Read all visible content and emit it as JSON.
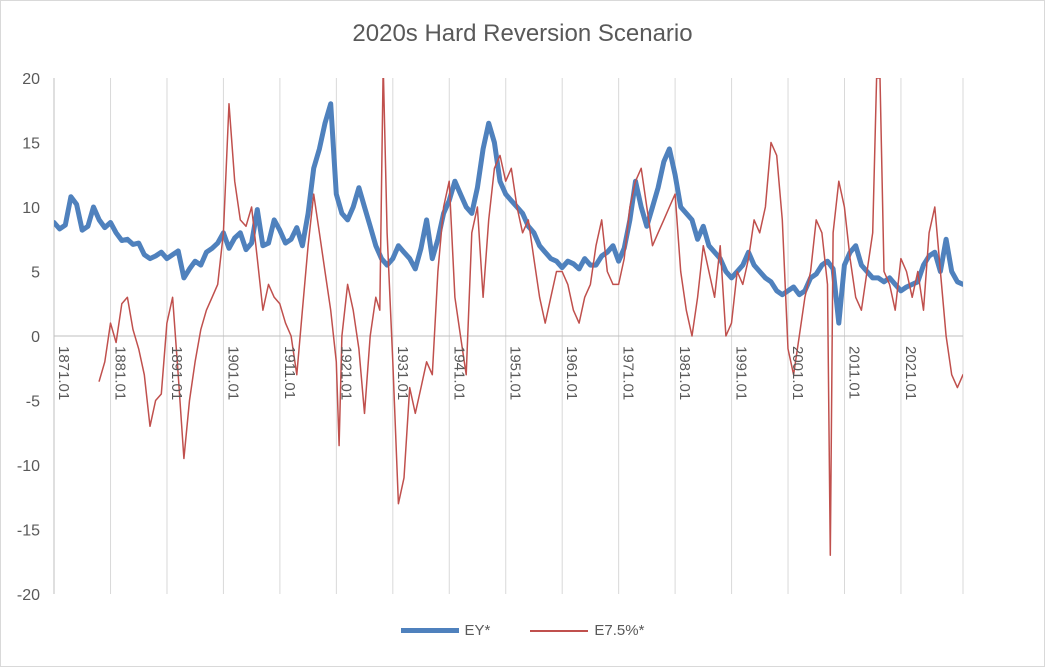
{
  "chart_data": {
    "type": "line",
    "title": "2020s Hard Reversion Scenario",
    "xlabel": "",
    "ylabel": "",
    "ylim": [
      -20,
      20
    ],
    "yticks": [
      -20,
      -15,
      -10,
      -5,
      0,
      5,
      10,
      15,
      20
    ],
    "xlim": [
      1871.0,
      2032.0
    ],
    "xticks": [
      "1871.01",
      "1881.01",
      "1891.01",
      "1901.01",
      "1911.01",
      "1921.01",
      "1931.01",
      "1941.01",
      "1951.01",
      "1961.01",
      "1971.01",
      "1981.01",
      "1991.01",
      "2001.01",
      "2011.01",
      "2021.01"
    ],
    "grid": "vertical",
    "legend_position": "bottom",
    "colors": {
      "EY": "#4f81bd",
      "E75": "#c0504d"
    },
    "series": [
      {
        "name": "EY*",
        "x": [
          1871,
          1872,
          1873,
          1874,
          1875,
          1876,
          1877,
          1878,
          1879,
          1880,
          1881,
          1882,
          1883,
          1884,
          1885,
          1886,
          1887,
          1888,
          1889,
          1890,
          1891,
          1892,
          1893,
          1894,
          1895,
          1896,
          1897,
          1898,
          1899,
          1900,
          1901,
          1902,
          1903,
          1904,
          1905,
          1906,
          1907,
          1908,
          1909,
          1910,
          1911,
          1912,
          1913,
          1914,
          1915,
          1916,
          1917,
          1918,
          1919,
          1920,
          1921,
          1922,
          1923,
          1924,
          1925,
          1926,
          1927,
          1928,
          1929,
          1930,
          1931,
          1932,
          1933,
          1934,
          1935,
          1936,
          1937,
          1938,
          1939,
          1940,
          1941,
          1942,
          1943,
          1944,
          1945,
          1946,
          1947,
          1948,
          1949,
          1950,
          1951,
          1952,
          1953,
          1954,
          1955,
          1956,
          1957,
          1958,
          1959,
          1960,
          1961,
          1962,
          1963,
          1964,
          1965,
          1966,
          1967,
          1968,
          1969,
          1970,
          1971,
          1972,
          1973,
          1974,
          1975,
          1976,
          1977,
          1978,
          1979,
          1980,
          1981,
          1982,
          1983,
          1984,
          1985,
          1986,
          1987,
          1988,
          1989,
          1990,
          1991,
          1992,
          1993,
          1994,
          1995,
          1996,
          1997,
          1998,
          1999,
          2000,
          2001,
          2002,
          2003,
          2004,
          2005,
          2006,
          2007,
          2008,
          2009,
          2010,
          2011,
          2012,
          2013,
          2014,
          2015,
          2016,
          2017,
          2018,
          2019,
          2020,
          2021,
          2022,
          2023,
          2024,
          2025,
          2026,
          2027,
          2028,
          2029,
          2030,
          2031,
          2032
        ],
        "values": [
          8.8,
          8.3,
          8.6,
          10.8,
          10.2,
          8.2,
          8.5,
          10.0,
          9.0,
          8.4,
          8.8,
          8.0,
          7.4,
          7.5,
          7.1,
          7.2,
          6.3,
          6.0,
          6.2,
          6.5,
          6.0,
          6.3,
          6.6,
          4.5,
          5.2,
          5.8,
          5.5,
          6.5,
          6.8,
          7.2,
          8.0,
          6.8,
          7.6,
          8.0,
          6.7,
          7.2,
          9.8,
          7.0,
          7.2,
          9.0,
          8.2,
          7.2,
          7.5,
          8.4,
          7.0,
          9.5,
          13.0,
          14.5,
          16.5,
          18.0,
          11.0,
          9.5,
          9.0,
          10.0,
          11.5,
          10.0,
          8.5,
          7.0,
          6.0,
          5.5,
          6.0,
          7.0,
          6.5,
          6.0,
          5.2,
          6.8,
          9.0,
          6.0,
          7.5,
          9.5,
          10.5,
          12.0,
          11.0,
          10.0,
          9.5,
          11.5,
          14.5,
          16.5,
          15.0,
          12.0,
          11.0,
          10.5,
          10.0,
          9.5,
          8.5,
          8.0,
          7.0,
          6.5,
          6.0,
          5.8,
          5.3,
          5.8,
          5.6,
          5.2,
          6.0,
          5.5,
          5.5,
          6.2,
          6.5,
          7.0,
          5.8,
          6.8,
          9.0,
          12.0,
          10.0,
          8.5,
          10.0,
          11.5,
          13.5,
          14.5,
          12.5,
          10.0,
          9.5,
          9.0,
          7.5,
          8.5,
          7.0,
          6.5,
          6.0,
          5.0,
          4.5,
          5.0,
          5.5,
          6.5,
          5.5,
          5.0,
          4.5,
          4.2,
          3.5,
          3.2,
          3.5,
          3.8,
          3.2,
          3.5,
          4.5,
          4.8,
          5.5,
          5.8,
          5.2,
          1.0,
          5.5,
          6.5,
          7.0,
          5.5,
          5.0,
          4.5,
          4.5,
          4.2,
          4.5,
          4.0,
          3.5,
          3.8,
          4.0,
          4.2,
          5.5,
          6.2,
          6.5,
          5.0,
          7.5,
          5.0,
          4.2,
          4.0
        ]
      },
      {
        "name": "E7.5%*",
        "x": [
          1879.0,
          1880.0,
          1881.0,
          1882.0,
          1883.0,
          1884.0,
          1885.0,
          1886.0,
          1887.0,
          1888.0,
          1889.0,
          1890.0,
          1891.0,
          1892.0,
          1893.0,
          1894.0,
          1895.0,
          1896.0,
          1897.0,
          1898.0,
          1899.0,
          1900.0,
          1901.0,
          1902.0,
          1903.0,
          1904.0,
          1905.0,
          1906.0,
          1907.0,
          1908.0,
          1909.0,
          1910.0,
          1911.0,
          1912.0,
          1913.0,
          1914.0,
          1915.0,
          1916.0,
          1917.0,
          1918.0,
          1919.0,
          1920.0,
          1921.0,
          1921.5,
          1922.0,
          1923.0,
          1924.0,
          1925.0,
          1926.0,
          1927.0,
          1928.0,
          1928.7,
          1929.3,
          1930.0,
          1931.0,
          1932.0,
          1933.0,
          1934.0,
          1935.0,
          1936.0,
          1937.0,
          1938.0,
          1939.0,
          1940.0,
          1941.0,
          1942.0,
          1943.0,
          1944.0,
          1945.0,
          1946.0,
          1947.0,
          1948.0,
          1949.0,
          1950.0,
          1951.0,
          1952.0,
          1953.0,
          1954.0,
          1955.0,
          1956.0,
          1957.0,
          1958.0,
          1959.0,
          1960.0,
          1961.0,
          1962.0,
          1963.0,
          1964.0,
          1965.0,
          1966.0,
          1967.0,
          1968.0,
          1969.0,
          1970.0,
          1971.0,
          1972.0,
          1973.0,
          1974.0,
          1975.0,
          1976.0,
          1977.0,
          1978.0,
          1979.0,
          1980.0,
          1981.0,
          1982.0,
          1983.0,
          1984.0,
          1985.0,
          1986.0,
          1987.0,
          1988.0,
          1989.0,
          1990.0,
          1991.0,
          1992.0,
          1993.0,
          1994.0,
          1995.0,
          1996.0,
          1997.0,
          1998.0,
          1999.0,
          2000.0,
          2001.0,
          2002.0,
          2003.0,
          2004.0,
          2005.0,
          2006.0,
          2007.0,
          2008.0,
          2008.5,
          2009.0,
          2010.0,
          2011.0,
          2012.0,
          2013.0,
          2014.0,
          2015.0,
          2016.0,
          2016.7,
          2017.3,
          2018.0,
          2019.0,
          2020.0,
          2021.0,
          2022.0,
          2023.0,
          2024.0,
          2025.0,
          2026.0,
          2027.0,
          2028.0,
          2029.0,
          2030.0,
          2031.0,
          2032.0
        ],
        "values": [
          -3.5,
          -2.0,
          1.0,
          -0.5,
          2.5,
          3.0,
          0.5,
          -1.0,
          -3.0,
          -7.0,
          -5.0,
          -4.5,
          1.0,
          3.0,
          -3.0,
          -9.5,
          -5.0,
          -2.0,
          0.5,
          2.0,
          3.0,
          4.0,
          8.0,
          18.0,
          12.0,
          9.0,
          8.5,
          10.0,
          6.0,
          2.0,
          4.0,
          3.0,
          2.5,
          1.0,
          0.0,
          -3.0,
          2.0,
          7.0,
          11.0,
          8.0,
          5.0,
          2.0,
          -2.0,
          -8.5,
          0.0,
          4.0,
          2.0,
          -1.0,
          -6.0,
          0.0,
          3.0,
          2.0,
          21.0,
          8.0,
          -2.0,
          -13.0,
          -11.0,
          -4.0,
          -6.0,
          -4.0,
          -2.0,
          -3.0,
          5.0,
          10.0,
          12.0,
          3.0,
          0.0,
          -3.0,
          8.0,
          10.0,
          3.0,
          9.0,
          13.0,
          14.0,
          12.0,
          13.0,
          10.0,
          8.0,
          9.0,
          6.0,
          3.0,
          1.0,
          3.0,
          5.0,
          5.0,
          4.0,
          2.0,
          1.0,
          3.0,
          4.0,
          7.0,
          9.0,
          5.0,
          4.0,
          4.0,
          6.0,
          10.0,
          12.0,
          13.0,
          10.0,
          7.0,
          8.0,
          9.0,
          10.0,
          11.0,
          5.0,
          2.0,
          0.0,
          3.0,
          7.0,
          5.0,
          3.0,
          7.0,
          0.0,
          1.0,
          5.0,
          4.0,
          6.0,
          9.0,
          8.0,
          10.0,
          15.0,
          14.0,
          9.0,
          -1.0,
          -3.0,
          0.0,
          3.0,
          5.0,
          9.0,
          8.0,
          4.0,
          -17.0,
          8.0,
          12.0,
          10.0,
          6.0,
          3.0,
          2.0,
          5.0,
          8.0,
          20.0,
          20.0,
          5.0,
          4.0,
          2.0,
          6.0,
          5.0,
          3.0,
          5.0,
          2.0,
          8.0,
          10.0,
          5.0,
          0.0,
          -3.0,
          -4.0,
          -3.0
        ]
      }
    ]
  }
}
